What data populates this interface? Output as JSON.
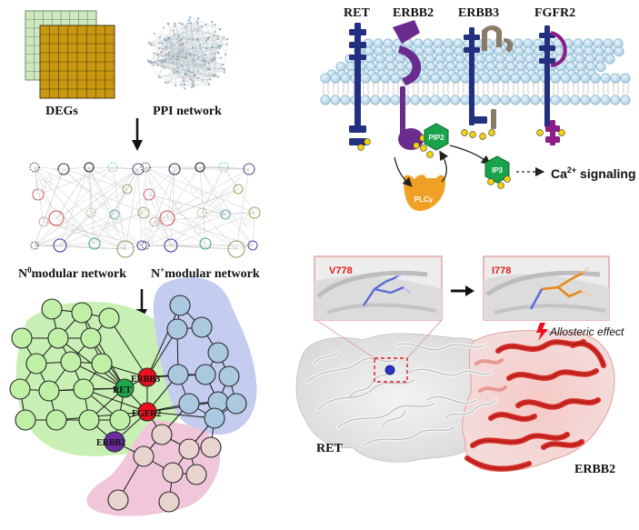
{
  "workflow": {
    "degs_label": "DEGs",
    "ppi_label": "PPI network",
    "n0_label_base": "N",
    "n0_label_sup": "0",
    "n0_label_rest": "modular network",
    "nplus_label_base": "N",
    "nplus_label_sup": "+",
    "nplus_label_rest": "modular network"
  },
  "network": {
    "nodes": {
      "ret": "RET",
      "erbb3": "ERBB3",
      "fgfr2": "FGFR2",
      "erbb2": "ERBB2"
    },
    "colors": {
      "green_module": "#c8f0b4",
      "blue_module": "#c4cdf0",
      "pink_module": "#f2c6da",
      "ret": "#1fa64a",
      "hub_red": "#e8101c",
      "erbb2": "#6a2ca0"
    }
  },
  "signaling": {
    "receptors": {
      "ret": "RET",
      "erbb2": "ERBB2",
      "erbb3": "ERBB3",
      "fgfr2": "FGFR2"
    },
    "pip2": "PIP2",
    "plc": "PLCγ",
    "ip3": "IP3",
    "ca_base": "Ca",
    "ca_sup": "2+",
    "ca_rest": " signaling"
  },
  "structure": {
    "wild_residue": "V778",
    "mutant_residue": "I778",
    "effect": "Allosteric effect",
    "left_protein": "RET",
    "right_protein": "ERBB2"
  }
}
